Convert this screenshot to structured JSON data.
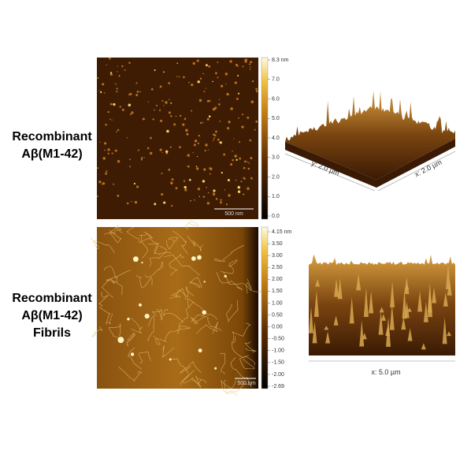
{
  "panels": [
    {
      "label": [
        "Recombinant",
        "Aβ(M1-42)"
      ],
      "colorbar_ticks": [
        "8.3 nm",
        "7.0",
        "6.0",
        "5.0",
        "4.0",
        "3.0",
        "2.0",
        "1.0",
        "0.0"
      ],
      "scale_bar": "500 nm",
      "surface_axes": [
        "y: 2.0 µm",
        "x: 2.0 µm"
      ]
    },
    {
      "label": [
        "Recombinant",
        "Aβ(M1-42)",
        "Fibrils"
      ],
      "colorbar_ticks": [
        "4.15 nm",
        "3.50",
        "3.00",
        "2.50",
        "2.00",
        "1.50",
        "1.00",
        "0.50",
        "0.00",
        "-0.50",
        "-1.00",
        "-1.50",
        "-2.00",
        "-2.69"
      ],
      "scale_bar": "500 nm",
      "surface_axes": [
        "x: 5.0 µm"
      ]
    }
  ]
}
